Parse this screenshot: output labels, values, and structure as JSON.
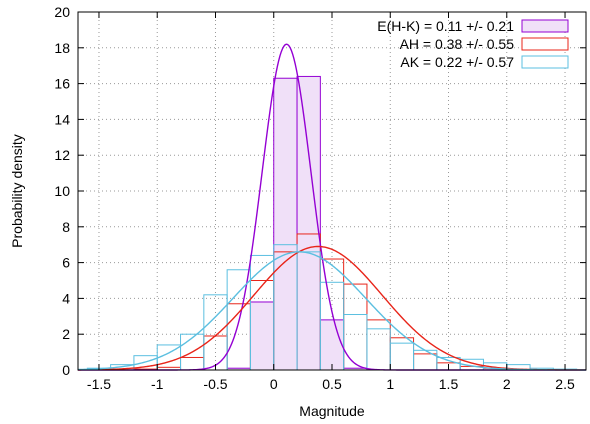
{
  "chart_data": {
    "type": "histogram",
    "title": "",
    "xlabel": "Magnitude",
    "ylabel": "Probability density",
    "xlim": [
      -1.68,
      2.68
    ],
    "ylim": [
      0,
      20
    ],
    "xticks": [
      -1.5,
      -1,
      -0.5,
      0,
      0.5,
      1,
      1.5,
      2,
      2.5
    ],
    "xtick_labels": [
      "-1.5",
      "-1",
      "-0.5",
      "0",
      "0.5",
      "1",
      "1.5",
      "2",
      "2.5"
    ],
    "yticks": [
      0,
      2,
      4,
      6,
      8,
      10,
      12,
      14,
      16,
      18,
      20
    ],
    "ytick_labels": [
      "0",
      "2",
      "4",
      "6",
      "8",
      "10",
      "12",
      "14",
      "16",
      "18",
      "20"
    ],
    "grid": true,
    "legend_position": "top-right",
    "bin_width": 0.2,
    "series": [
      {
        "name": "E(H-K) = 0.11 +/- 0.21",
        "color": "#9400d3",
        "fill": "#f0e0f8",
        "filled": true,
        "mean": 0.11,
        "sigma": 0.21,
        "curve_peak": 18.2,
        "bins": [
          [
            -0.3,
            0.1
          ],
          [
            -0.1,
            3.8
          ],
          [
            0.1,
            16.3
          ],
          [
            0.3,
            16.4
          ],
          [
            0.5,
            2.8
          ],
          [
            0.7,
            0.1
          ]
        ]
      },
      {
        "name": "AH = 0.38 +/- 0.55",
        "color": "#e8251a",
        "filled": false,
        "mean": 0.38,
        "sigma": 0.55,
        "curve_peak": 6.9,
        "bins": [
          [
            -1.1,
            0.05
          ],
          [
            -0.9,
            0.15
          ],
          [
            -0.7,
            0.7
          ],
          [
            -0.5,
            1.9
          ],
          [
            -0.3,
            3.7
          ],
          [
            -0.1,
            5.0
          ],
          [
            0.1,
            6.6
          ],
          [
            0.3,
            7.6
          ],
          [
            0.5,
            6.2
          ],
          [
            0.7,
            4.8
          ],
          [
            0.9,
            2.8
          ],
          [
            1.1,
            1.8
          ],
          [
            1.3,
            0.9
          ],
          [
            1.5,
            0.4
          ],
          [
            1.7,
            0.2
          ],
          [
            1.9,
            0.1
          ]
        ]
      },
      {
        "name": "AK = 0.22 +/- 0.57",
        "color": "#5bbfe0",
        "filled": false,
        "mean": 0.22,
        "sigma": 0.57,
        "curve_peak": 6.6,
        "bins": [
          [
            -1.5,
            0.1
          ],
          [
            -1.3,
            0.3
          ],
          [
            -1.1,
            0.8
          ],
          [
            -0.9,
            1.4
          ],
          [
            -0.7,
            2.0
          ],
          [
            -0.5,
            4.2
          ],
          [
            -0.3,
            5.6
          ],
          [
            -0.1,
            6.4
          ],
          [
            0.1,
            7.0
          ],
          [
            0.3,
            6.6
          ],
          [
            0.5,
            4.9
          ],
          [
            0.7,
            3.1
          ],
          [
            0.9,
            2.3
          ],
          [
            1.1,
            1.5
          ],
          [
            1.3,
            1.1
          ],
          [
            1.5,
            0.7
          ],
          [
            1.7,
            0.6
          ],
          [
            1.9,
            0.4
          ],
          [
            2.1,
            0.3
          ],
          [
            2.3,
            0.1
          ],
          [
            2.5,
            0.05
          ]
        ]
      }
    ]
  }
}
